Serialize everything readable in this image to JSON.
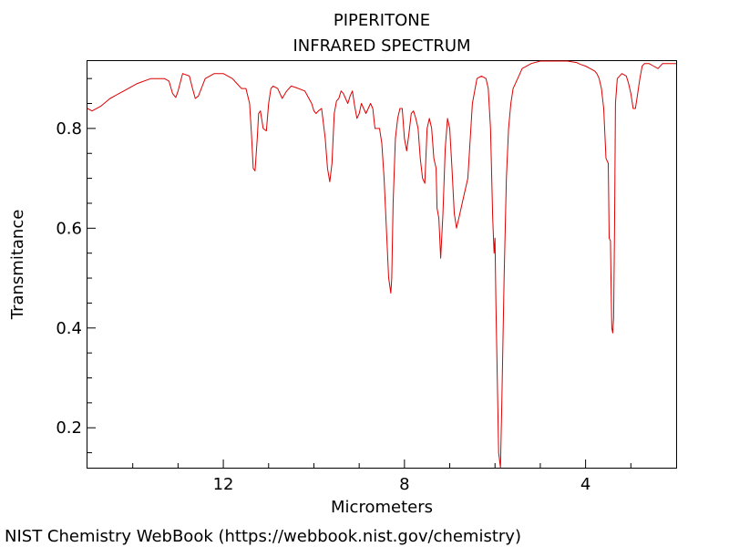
{
  "chart_data": {
    "type": "line",
    "title": "PIPERITONE",
    "subtitle": "INFRARED SPECTRUM",
    "xlabel": "Micrometers",
    "ylabel": "Transmitance",
    "xlim": [
      15.0,
      2.0
    ],
    "ylim": [
      0.12,
      0.935
    ],
    "x_ticks": [
      12,
      8,
      4
    ],
    "x_tick_labels": [
      "12",
      "8",
      "4"
    ],
    "y_ticks": [
      0.2,
      0.4,
      0.6,
      0.8
    ],
    "y_tick_labels": [
      "0.2",
      "0.4",
      "0.6",
      "0.8"
    ],
    "grid": false,
    "line_color": "#dd0000",
    "series": [
      {
        "x": [
          15.0,
          14.9,
          14.7,
          14.5,
          14.2,
          13.9,
          13.6,
          13.3,
          13.2,
          13.12,
          13.05,
          13.0,
          12.9,
          12.75,
          12.68,
          12.62,
          12.55,
          12.4,
          12.2,
          12.0,
          11.8,
          11.7,
          11.6,
          11.5,
          11.42,
          11.38,
          11.34,
          11.3,
          11.25,
          11.22,
          11.18,
          11.12,
          11.05,
          11.0,
          10.95,
          10.9,
          10.8,
          10.7,
          10.6,
          10.5,
          10.4,
          10.2,
          10.05,
          10.0,
          9.95,
          9.9,
          9.83,
          9.75,
          9.7,
          9.65,
          9.6,
          9.55,
          9.5,
          9.45,
          9.4,
          9.35,
          9.3,
          9.25,
          9.2,
          9.15,
          9.1,
          9.05,
          9.0,
          8.95,
          8.9,
          8.85,
          8.8,
          8.75,
          8.7,
          8.65,
          8.6,
          8.55,
          8.5,
          8.45,
          8.4,
          8.35,
          8.3,
          8.28,
          8.25,
          8.2,
          8.15,
          8.1,
          8.05,
          8.0,
          7.95,
          7.9,
          7.85,
          7.8,
          7.75,
          7.7,
          7.65,
          7.6,
          7.55,
          7.5,
          7.45,
          7.4,
          7.35,
          7.3,
          7.28,
          7.26,
          7.24,
          7.2,
          7.15,
          7.1,
          7.05,
          7.0,
          6.95,
          6.9,
          6.85,
          6.8,
          6.75,
          6.7,
          6.6,
          6.5,
          6.4,
          6.3,
          6.2,
          6.15,
          6.1,
          6.05,
          6.02,
          6.0,
          5.98,
          5.95,
          5.92,
          5.88,
          5.85,
          5.8,
          5.75,
          5.7,
          5.65,
          5.6,
          5.5,
          5.4,
          5.2,
          5.0,
          4.8,
          4.6,
          4.4,
          4.2,
          4.1,
          4.0,
          3.9,
          3.8,
          3.75,
          3.7,
          3.65,
          3.6,
          3.55,
          3.5,
          3.48,
          3.45,
          3.43,
          3.42,
          3.4,
          3.38,
          3.36,
          3.34,
          3.3,
          3.2,
          3.1,
          3.05,
          3.0,
          2.95,
          2.9,
          2.85,
          2.8,
          2.75,
          2.7,
          2.6,
          2.5,
          2.4,
          2.3,
          2.2,
          2.1,
          2.0
        ],
        "y": [
          0.84,
          0.835,
          0.845,
          0.86,
          0.875,
          0.89,
          0.9,
          0.9,
          0.895,
          0.87,
          0.862,
          0.875,
          0.91,
          0.905,
          0.88,
          0.86,
          0.865,
          0.9,
          0.91,
          0.91,
          0.9,
          0.89,
          0.88,
          0.88,
          0.85,
          0.79,
          0.72,
          0.715,
          0.78,
          0.83,
          0.835,
          0.8,
          0.795,
          0.85,
          0.88,
          0.885,
          0.88,
          0.86,
          0.875,
          0.885,
          0.882,
          0.875,
          0.85,
          0.835,
          0.83,
          0.835,
          0.84,
          0.78,
          0.72,
          0.693,
          0.73,
          0.83,
          0.855,
          0.86,
          0.875,
          0.87,
          0.86,
          0.85,
          0.865,
          0.875,
          0.845,
          0.82,
          0.83,
          0.85,
          0.84,
          0.83,
          0.84,
          0.85,
          0.84,
          0.8,
          0.8,
          0.8,
          0.77,
          0.7,
          0.6,
          0.5,
          0.47,
          0.5,
          0.65,
          0.78,
          0.82,
          0.84,
          0.84,
          0.78,
          0.755,
          0.79,
          0.83,
          0.835,
          0.82,
          0.8,
          0.74,
          0.7,
          0.69,
          0.8,
          0.82,
          0.8,
          0.74,
          0.72,
          0.64,
          0.63,
          0.62,
          0.54,
          0.63,
          0.76,
          0.82,
          0.8,
          0.72,
          0.63,
          0.6,
          0.62,
          0.64,
          0.66,
          0.7,
          0.85,
          0.9,
          0.905,
          0.9,
          0.88,
          0.8,
          0.62,
          0.55,
          0.58,
          0.45,
          0.3,
          0.15,
          0.12,
          0.25,
          0.5,
          0.7,
          0.8,
          0.85,
          0.88,
          0.9,
          0.92,
          0.93,
          0.935,
          0.935,
          0.935,
          0.935,
          0.932,
          0.928,
          0.925,
          0.92,
          0.915,
          0.91,
          0.9,
          0.88,
          0.84,
          0.74,
          0.73,
          0.58,
          0.575,
          0.45,
          0.4,
          0.39,
          0.42,
          0.6,
          0.85,
          0.9,
          0.91,
          0.905,
          0.89,
          0.87,
          0.84,
          0.84,
          0.87,
          0.9,
          0.925,
          0.93,
          0.93,
          0.925,
          0.92,
          0.93,
          0.93,
          0.93,
          0.93
        ]
      }
    ]
  },
  "footer": {
    "source_text": "NIST Chemistry WebBook (https://webbook.nist.gov/chemistry)"
  }
}
